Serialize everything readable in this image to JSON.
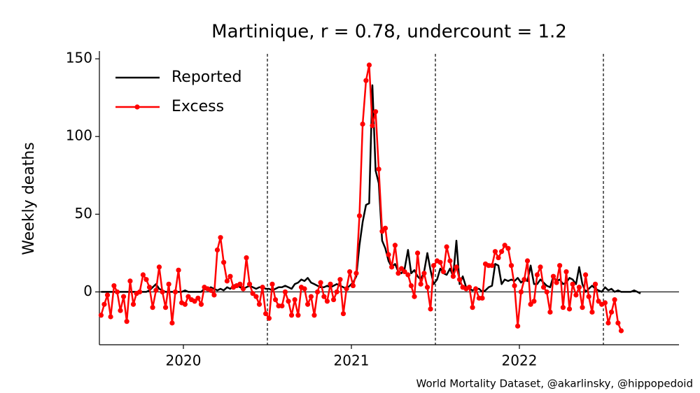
{
  "chart_data": {
    "type": "line",
    "title": "Martinique, r = 0.78, undercount = 1.2",
    "ylabel": "Weekly deaths",
    "source": "World Mortality Dataset, @akarlinsky, @hippopedoid",
    "xlim": [
      2020.0,
      2023.45
    ],
    "xticks": [
      {
        "value": 2020.5,
        "label": "2020"
      },
      {
        "value": 2021.5,
        "label": "2021"
      },
      {
        "value": 2022.5,
        "label": "2022"
      }
    ],
    "ylim": [
      -34,
      155
    ],
    "yticks": [
      0,
      50,
      100,
      150
    ],
    "vlines": [
      2021,
      2022,
      2023
    ],
    "hline": 0,
    "legend": "upper left",
    "x": [
      2020.01,
      2020.029,
      2020.048,
      2020.067,
      2020.087,
      2020.106,
      2020.125,
      2020.144,
      2020.163,
      2020.183,
      2020.202,
      2020.221,
      2020.24,
      2020.26,
      2020.279,
      2020.298,
      2020.317,
      2020.337,
      2020.356,
      2020.375,
      2020.394,
      2020.413,
      2020.433,
      2020.452,
      2020.471,
      2020.49,
      2020.51,
      2020.529,
      2020.548,
      2020.567,
      2020.587,
      2020.606,
      2020.625,
      2020.644,
      2020.663,
      2020.683,
      2020.702,
      2020.721,
      2020.74,
      2020.76,
      2020.779,
      2020.798,
      2020.817,
      2020.837,
      2020.856,
      2020.875,
      2020.894,
      2020.913,
      2020.933,
      2020.952,
      2020.971,
      2020.99,
      2021.01,
      2021.029,
      2021.048,
      2021.067,
      2021.087,
      2021.106,
      2021.125,
      2021.144,
      2021.163,
      2021.183,
      2021.202,
      2021.221,
      2021.24,
      2021.26,
      2021.279,
      2021.298,
      2021.317,
      2021.337,
      2021.356,
      2021.375,
      2021.394,
      2021.413,
      2021.433,
      2021.452,
      2021.471,
      2021.49,
      2021.51,
      2021.529,
      2021.548,
      2021.567,
      2021.587,
      2021.606,
      2021.625,
      2021.644,
      2021.663,
      2021.683,
      2021.702,
      2021.721,
      2021.74,
      2021.76,
      2021.779,
      2021.798,
      2021.817,
      2021.837,
      2021.856,
      2021.875,
      2021.894,
      2021.913,
      2021.933,
      2021.952,
      2021.971,
      2021.99,
      2022.01,
      2022.029,
      2022.048,
      2022.067,
      2022.087,
      2022.106,
      2022.125,
      2022.144,
      2022.163,
      2022.183,
      2022.202,
      2022.221,
      2022.24,
      2022.26,
      2022.279,
      2022.298,
      2022.317,
      2022.337,
      2022.356,
      2022.375,
      2022.394,
      2022.413,
      2022.433,
      2022.452,
      2022.471,
      2022.49,
      2022.51,
      2022.529,
      2022.548,
      2022.567,
      2022.587,
      2022.606,
      2022.625,
      2022.644,
      2022.663,
      2022.683,
      2022.702,
      2022.721,
      2022.74,
      2022.76,
      2022.779,
      2022.798,
      2022.817,
      2022.837,
      2022.856,
      2022.875,
      2022.894,
      2022.913,
      2022.933,
      2022.952,
      2022.971,
      2022.99,
      2023.01,
      2023.029,
      2023.048,
      2023.067,
      2023.087,
      2023.106,
      2023.125,
      2023.144,
      2023.163,
      2023.183,
      2023.202,
      2023.221
    ],
    "series": [
      {
        "name": "Reported",
        "color": "#000000",
        "markers": false,
        "values": [
          0,
          0,
          0,
          0,
          0,
          0,
          0,
          0,
          0,
          0,
          0,
          0,
          0,
          0,
          0,
          1,
          3,
          5,
          2,
          1,
          0,
          0,
          0,
          0,
          0,
          0,
          1,
          0,
          0,
          0,
          0,
          0,
          2,
          1,
          3,
          2,
          1,
          2,
          1,
          3,
          2,
          4,
          5,
          3,
          2,
          3,
          4,
          3,
          2,
          3,
          3,
          2,
          2,
          1,
          2,
          3,
          3,
          4,
          3,
          2,
          5,
          6,
          8,
          7,
          9,
          6,
          5,
          4,
          3,
          3,
          4,
          3,
          4,
          5,
          4,
          3,
          2,
          4,
          6,
          10,
          30,
          45,
          56,
          57,
          133,
          78,
          70,
          33,
          28,
          20,
          16,
          18,
          13,
          12,
          15,
          27,
          12,
          14,
          10,
          8,
          13,
          25,
          14,
          5,
          8,
          15,
          12,
          11,
          15,
          10,
          33,
          5,
          10,
          3,
          2,
          1,
          2,
          2,
          0,
          1,
          3,
          4,
          18,
          17,
          5,
          8,
          7,
          8,
          7,
          9,
          6,
          8,
          7,
          17,
          5,
          5,
          8,
          6,
          4,
          3,
          10,
          7,
          8,
          5,
          6,
          9,
          8,
          5,
          16,
          5,
          0,
          2,
          4,
          2,
          1,
          0,
          3,
          1,
          2,
          0,
          1,
          0,
          0,
          0,
          0,
          1,
          0,
          -1
        ]
      },
      {
        "name": "Excess",
        "color": "#ff0000",
        "markers": true,
        "values": [
          -15,
          -8,
          -2,
          -16,
          4,
          0,
          -12,
          -3,
          -19,
          7,
          -8,
          -1,
          0,
          11,
          8,
          3,
          -10,
          1,
          16,
          0,
          -10,
          5,
          -20,
          0,
          14,
          -7,
          -8,
          -3,
          -5,
          -6,
          -4,
          -8,
          3,
          2,
          1,
          -2,
          27,
          35,
          19,
          7,
          10,
          3,
          4,
          5,
          2,
          22,
          5,
          -1,
          -3,
          -8,
          3,
          -14,
          -17,
          5,
          -5,
          -9,
          -9,
          0,
          -6,
          -15,
          -5,
          -15,
          3,
          2,
          -8,
          -3,
          -15,
          0,
          6,
          -3,
          -6,
          5,
          -5,
          0,
          8,
          -14,
          2,
          13,
          4,
          12,
          49,
          108,
          136,
          146,
          107,
          116,
          79,
          39,
          41,
          24,
          16,
          30,
          12,
          15,
          13,
          11,
          4,
          -3,
          25,
          5,
          12,
          3,
          -11,
          17,
          20,
          19,
          13,
          29,
          20,
          10,
          16,
          8,
          3,
          2,
          3,
          -10,
          2,
          -4,
          -4,
          18,
          17,
          17,
          26,
          22,
          26,
          30,
          28,
          17,
          4,
          -22,
          0,
          8,
          20,
          -8,
          -6,
          11,
          16,
          3,
          0,
          -13,
          10,
          6,
          17,
          -10,
          13,
          -11,
          5,
          -2,
          3,
          -10,
          11,
          -3,
          -13,
          5,
          -6,
          -8,
          -7,
          -20,
          -13,
          -5,
          -20,
          -25,
          null,
          null,
          null,
          null,
          null,
          null
        ]
      }
    ]
  }
}
